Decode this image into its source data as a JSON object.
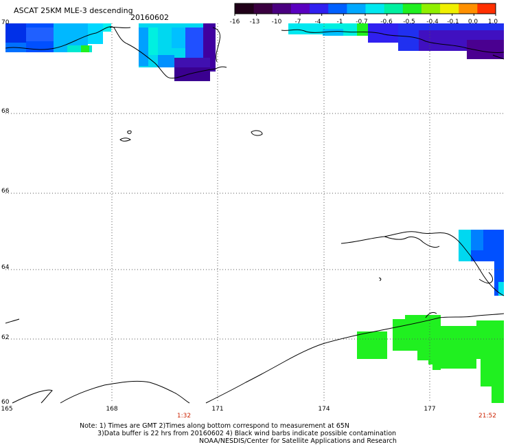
{
  "title": "ASCAT 25KM MLE-3 descending",
  "date": "20160602",
  "colorbar": {
    "labels": [
      "-16",
      "-13",
      "-10",
      "-7",
      "-4",
      "-1",
      "-0.7",
      "-0.6",
      "-0.5",
      "-0.4",
      "-0.1",
      "0.0",
      "1.0"
    ],
    "colors": [
      "#200018",
      "#3a0040",
      "#4a0080",
      "#5a00c0",
      "#3020f0",
      "#0060ff",
      "#00a8ff",
      "#00e8f0",
      "#00f0a0",
      "#20f020",
      "#90f000",
      "#f0f000",
      "#ff9000",
      "#ff3000"
    ]
  },
  "latitude_labels": [
    "70",
    "68",
    "66",
    "64",
    "62",
    "60"
  ],
  "longitude_labels": [
    "165",
    "168",
    "171",
    "174",
    "177"
  ],
  "time_labels": [
    "1:32",
    "21:52"
  ],
  "notes": [
    "Note: 1) Times are GMT 2)Times along bottom correspond to measurement at 65N",
    "3)Data buffer is 22 hrs from 20160602 4) Black wind barbs indicate possible contamination",
    "NOAA/NESDIS/Center for Satellite Applications and Research"
  ],
  "colors": {
    "grid": "#555555",
    "coast": "#000000",
    "time": "#cc2200"
  }
}
